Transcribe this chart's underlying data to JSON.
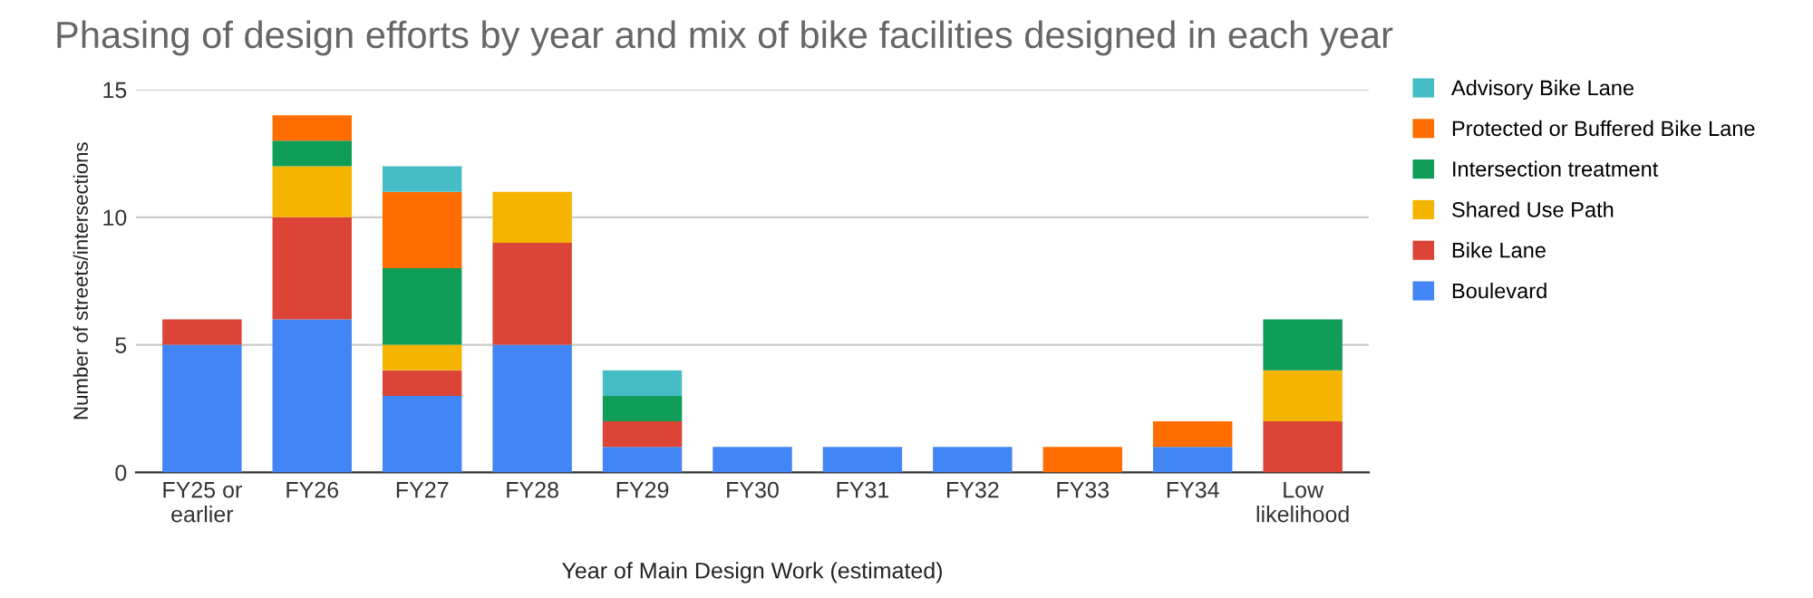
{
  "chart_data": {
    "type": "bar",
    "stacked": true,
    "title": "Phasing of design efforts by year and mix of bike facilities designed in each year",
    "xlabel": "Year of Main Design Work (estimated)",
    "ylabel": "Number of streets/intersections",
    "categories": [
      "FY25 or\nearlier",
      "FY26",
      "FY27",
      "FY28",
      "FY29",
      "FY30",
      "FY31",
      "FY32",
      "FY33",
      "FY34",
      "Low\nlikelihood"
    ],
    "series": [
      {
        "name": "Boulevard",
        "color": "#4285f4",
        "values": [
          5,
          6,
          3,
          5,
          1,
          1,
          1,
          1,
          0,
          1,
          0
        ]
      },
      {
        "name": "Bike Lane",
        "color": "#db4437",
        "values": [
          1,
          4,
          1,
          4,
          1,
          0,
          0,
          0,
          0,
          0,
          2
        ]
      },
      {
        "name": "Shared Use Path",
        "color": "#f4b400",
        "values": [
          0,
          2,
          1,
          2,
          0,
          0,
          0,
          0,
          0,
          0,
          2
        ]
      },
      {
        "name": "Intersection treatment",
        "color": "#0f9d58",
        "values": [
          0,
          1,
          3,
          0,
          1,
          0,
          0,
          0,
          0,
          0,
          2
        ]
      },
      {
        "name": "Protected or Buffered Bike Lane",
        "color": "#ff6d01",
        "values": [
          0,
          1,
          3,
          0,
          0,
          0,
          0,
          0,
          1,
          1,
          0
        ]
      },
      {
        "name": "Advisory Bike Lane",
        "color": "#46bdc6",
        "values": [
          0,
          0,
          1,
          0,
          1,
          0,
          0,
          0,
          0,
          0,
          0
        ]
      }
    ],
    "ylim": [
      0,
      15
    ],
    "yticks": [
      0,
      5,
      10,
      15
    ],
    "grid": "y",
    "legend": "top right"
  }
}
